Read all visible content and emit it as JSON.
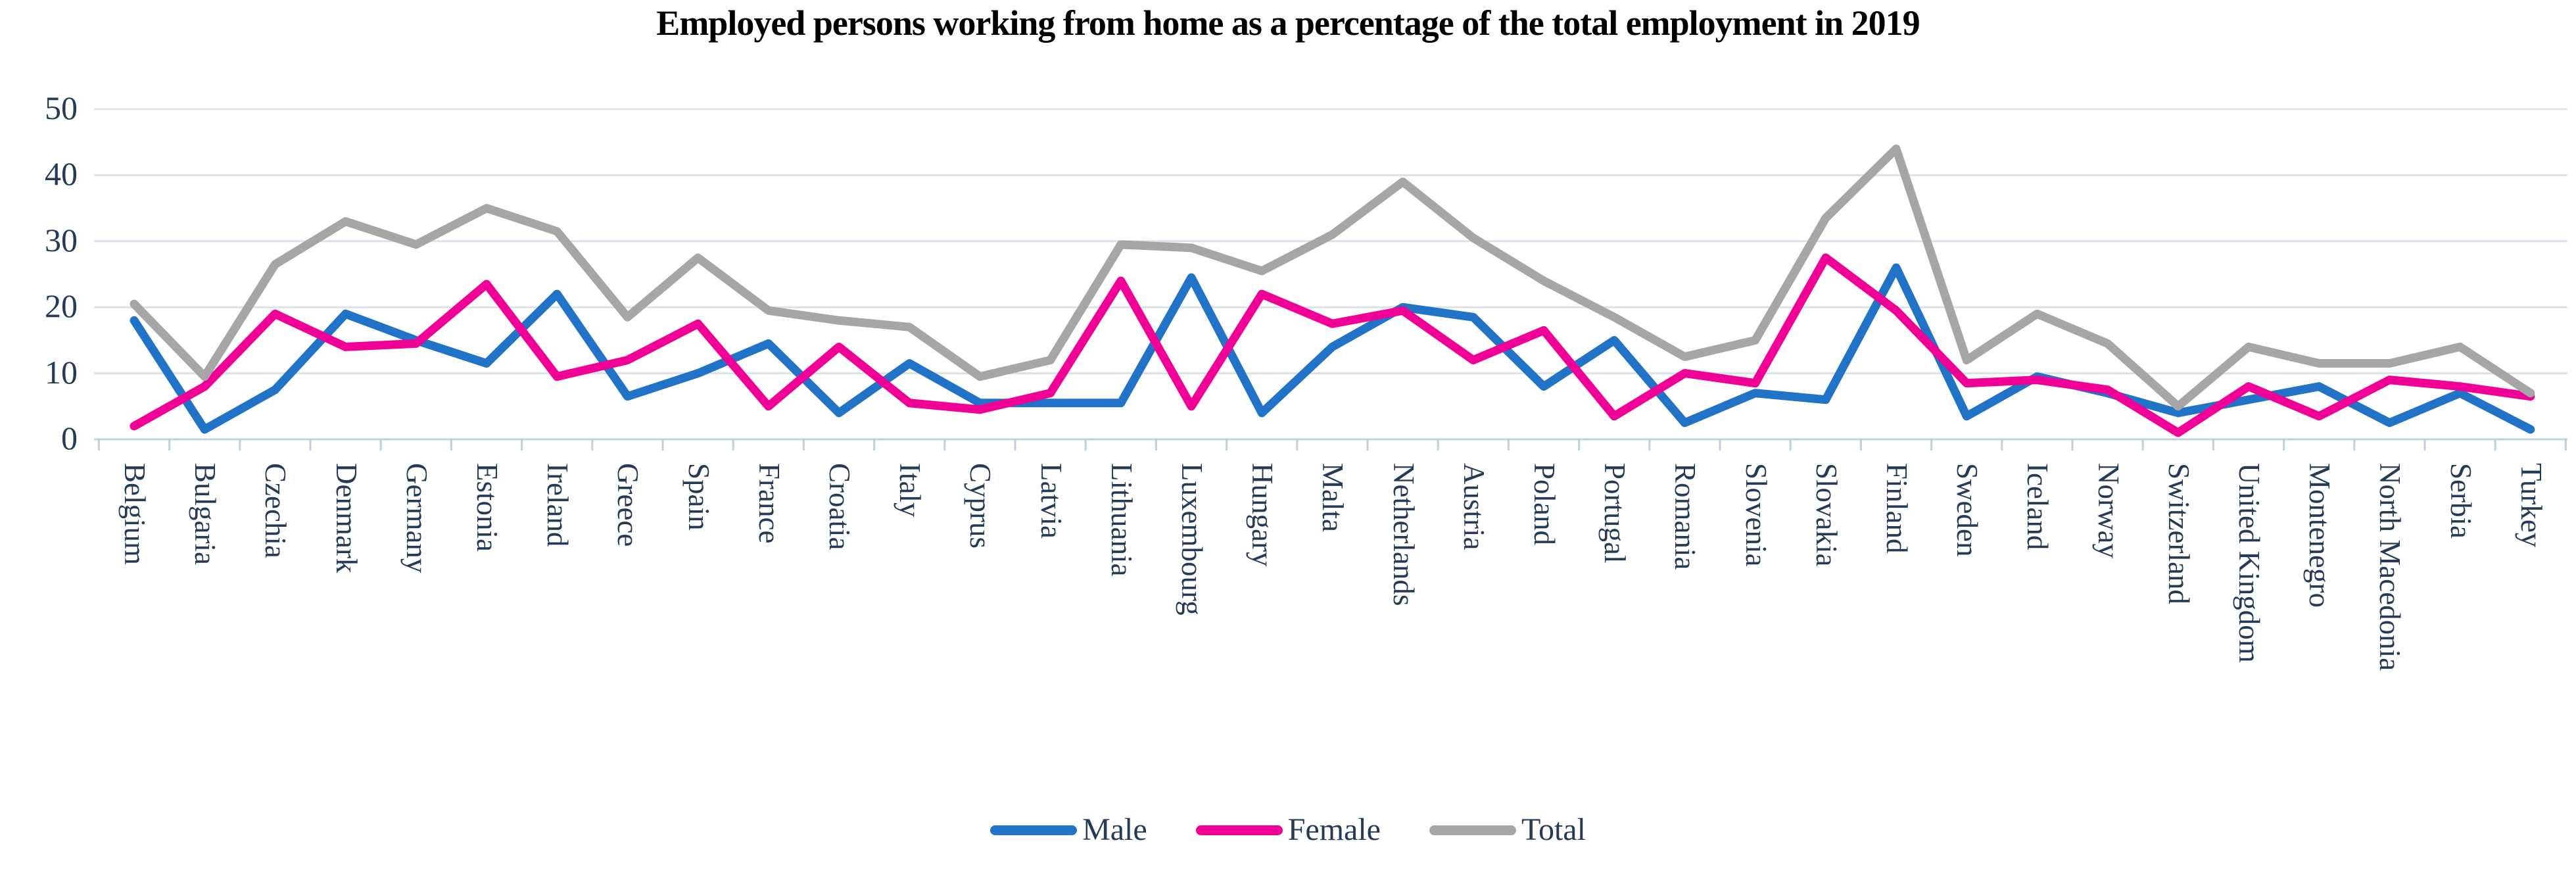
{
  "title": "Employed persons working from home as a percentage of the total employment in 2019",
  "colors": {
    "male": "#2173C8",
    "female": "#F00096",
    "total": "#A6A6A6",
    "text": "#253A56",
    "gridline": "#DAE2EA",
    "axis": "#C3CFDB"
  },
  "y_axis": {
    "ticks": [
      0,
      10,
      20,
      30,
      40,
      50
    ],
    "min": 0,
    "max": 50
  },
  "legend": {
    "items": [
      {
        "label": "Male",
        "color_key": "male"
      },
      {
        "label": "Female",
        "color_key": "female"
      },
      {
        "label": "Total",
        "color_key": "total"
      }
    ]
  },
  "chart_data": {
    "type": "line",
    "title": "Employed persons working from home as a percentage of the total employment in 2019",
    "xlabel": "",
    "ylabel": "",
    "ylim": [
      0,
      50
    ],
    "grid": "horizontal",
    "legend_position": "bottom",
    "categories": [
      "Belgium",
      "Bulgaria",
      "Czechia",
      "Denmark",
      "Germany",
      "Estonia",
      "Ireland",
      "Greece",
      "Spain",
      "France",
      "Croatia",
      "Italy",
      "Cyprus",
      "Latvia",
      "Lithuania",
      "Luxembourg",
      "Hungary",
      "Malta",
      "Netherlands",
      "Austria",
      "Poland",
      "Portugal",
      "Romania",
      "Slovenia",
      "Slovakia",
      "Finland",
      "Sweden",
      "Iceland",
      "Norway",
      "Switzerland",
      "United Kingdom",
      "Montenegro",
      "North Macedonia",
      "Serbia",
      "Turkey"
    ],
    "series": [
      {
        "name": "Male",
        "color_key": "male",
        "values": [
          18,
          1.5,
          7.5,
          19,
          15,
          11.5,
          22,
          6.5,
          10,
          14.5,
          4,
          11.5,
          5.5,
          5.5,
          5.5,
          24.5,
          4,
          14,
          20,
          18.5,
          8,
          15,
          2.5,
          7,
          6,
          26,
          3.5,
          9.5,
          7,
          4,
          6,
          8,
          2.5,
          7,
          1.5
        ]
      },
      {
        "name": "Female",
        "color_key": "female",
        "values": [
          2,
          8,
          19,
          14,
          14.5,
          23.5,
          9.5,
          12,
          17.5,
          5,
          14,
          5.5,
          4.5,
          7,
          24,
          5,
          22,
          17.5,
          19.5,
          12,
          16.5,
          3.5,
          10,
          8.5,
          27.5,
          19.5,
          8.5,
          9,
          7.5,
          1,
          8,
          3.5,
          9,
          8,
          6.5
        ]
      },
      {
        "name": "Total",
        "color_key": "total",
        "values": [
          20.5,
          9.5,
          26.5,
          33,
          29.5,
          35,
          31.5,
          18.5,
          27.5,
          19.5,
          18,
          17,
          9.5,
          12,
          29.5,
          29,
          25.5,
          31,
          39,
          30.5,
          24,
          18.5,
          12.5,
          15,
          33.5,
          44,
          12,
          19,
          14.5,
          5,
          14,
          11.5,
          11.5,
          14,
          7
        ]
      }
    ]
  }
}
